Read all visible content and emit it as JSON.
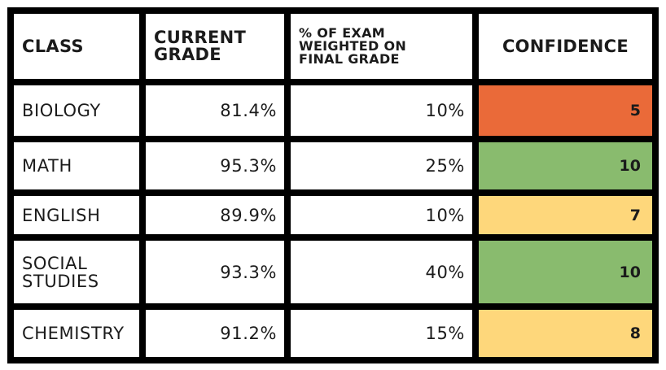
{
  "headers": {
    "class": "CLASS",
    "grade_line1": "CURRENT",
    "grade_line2": "GRADE",
    "weight_line1": "% OF EXAM",
    "weight_line2": "WEIGHTED ON",
    "weight_line3": "FINAL GRADE",
    "confidence": "CONFIDENCE"
  },
  "colors": {
    "red": "#ea6a39",
    "green": "#89bb6e",
    "yellow": "#fed77b"
  },
  "rows": [
    {
      "class_line1": "BIOLOGY",
      "class_line2": "",
      "grade": "81.4%",
      "weight": "10%",
      "confidence": "5",
      "color": "red"
    },
    {
      "class_line1": "MATH",
      "class_line2": "",
      "grade": "95.3%",
      "weight": "25%",
      "confidence": "10",
      "color": "green"
    },
    {
      "class_line1": "ENGLISH",
      "class_line2": "",
      "grade": "89.9%",
      "weight": "10%",
      "confidence": "7",
      "color": "yellow"
    },
    {
      "class_line1": "SOCIAL",
      "class_line2": "STUDIES",
      "grade": "93.3%",
      "weight": "40%",
      "confidence": "10",
      "color": "green"
    },
    {
      "class_line1": "CHEMISTRY",
      "class_line2": "",
      "grade": "91.2%",
      "weight": "15%",
      "confidence": "8",
      "color": "yellow"
    }
  ]
}
